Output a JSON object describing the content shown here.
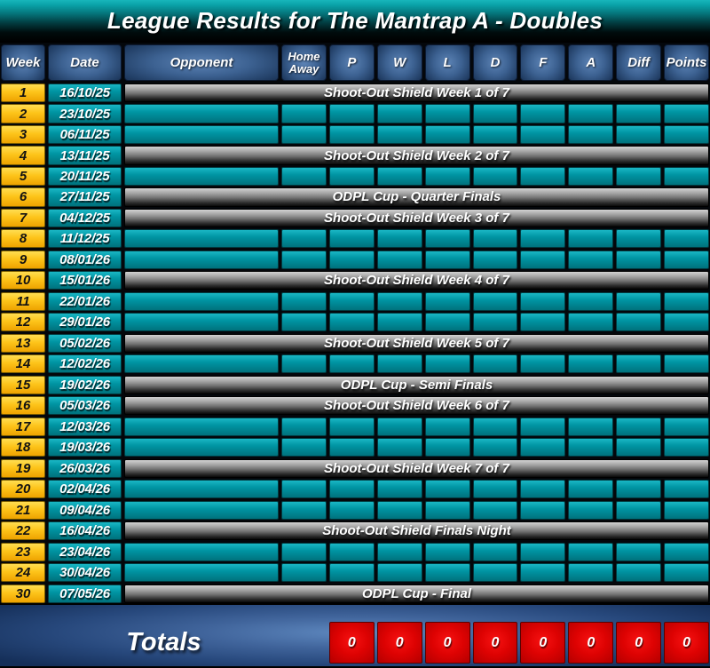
{
  "title": "League Results for The Mantrap A - Doubles",
  "header": {
    "columns": [
      {
        "key": "week",
        "label": "Week"
      },
      {
        "key": "date",
        "label": "Date"
      },
      {
        "key": "opponent",
        "label": "Opponent"
      },
      {
        "key": "home-away",
        "label": "Home\nAway"
      },
      {
        "key": "p",
        "label": "P"
      },
      {
        "key": "w",
        "label": "W"
      },
      {
        "key": "l",
        "label": "L"
      },
      {
        "key": "d",
        "label": "D"
      },
      {
        "key": "f",
        "label": "F"
      },
      {
        "key": "a",
        "label": "A"
      },
      {
        "key": "diff",
        "label": "Diff"
      },
      {
        "key": "points",
        "label": "Points"
      }
    ]
  },
  "rows": [
    {
      "week": "1",
      "date": "16/10/25",
      "event": "Shoot-Out Shield Week 1 of 7"
    },
    {
      "week": "2",
      "date": "23/10/25",
      "event": ""
    },
    {
      "week": "3",
      "date": "06/11/25",
      "event": ""
    },
    {
      "week": "4",
      "date": "13/11/25",
      "event": "Shoot-Out Shield Week 2 of 7"
    },
    {
      "week": "5",
      "date": "20/11/25",
      "event": ""
    },
    {
      "week": "6",
      "date": "27/11/25",
      "event": "ODPL Cup - Quarter Finals"
    },
    {
      "week": "7",
      "date": "04/12/25",
      "event": "Shoot-Out Shield Week 3 of 7"
    },
    {
      "week": "8",
      "date": "11/12/25",
      "event": ""
    },
    {
      "week": "9",
      "date": "08/01/26",
      "event": ""
    },
    {
      "week": "10",
      "date": "15/01/26",
      "event": "Shoot-Out Shield Week 4 of 7"
    },
    {
      "week": "11",
      "date": "22/01/26",
      "event": ""
    },
    {
      "week": "12",
      "date": "29/01/26",
      "event": ""
    },
    {
      "week": "13",
      "date": "05/02/26",
      "event": "Shoot-Out Shield Week 5 of 7"
    },
    {
      "week": "14",
      "date": "12/02/26",
      "event": ""
    },
    {
      "week": "15",
      "date": "19/02/26",
      "event": "ODPL Cup - Semi Finals"
    },
    {
      "week": "16",
      "date": "05/03/26",
      "event": "Shoot-Out Shield Week 6 of 7"
    },
    {
      "week": "17",
      "date": "12/03/26",
      "event": ""
    },
    {
      "week": "18",
      "date": "19/03/26",
      "event": ""
    },
    {
      "week": "19",
      "date": "26/03/26",
      "event": "Shoot-Out Shield Week 7 of 7"
    },
    {
      "week": "20",
      "date": "02/04/26",
      "event": ""
    },
    {
      "week": "21",
      "date": "09/04/26",
      "event": ""
    },
    {
      "week": "22",
      "date": "16/04/26",
      "event": "Shoot-Out Shield Finals Night"
    },
    {
      "week": "23",
      "date": "23/04/26",
      "event": ""
    },
    {
      "week": "24",
      "date": "30/04/26",
      "event": ""
    },
    {
      "week": "30",
      "date": "07/05/26",
      "event": "ODPL Cup - Final"
    }
  ],
  "totals": {
    "label": "Totals",
    "values": [
      "0",
      "0",
      "0",
      "0",
      "0",
      "0",
      "0",
      "0"
    ]
  },
  "colors": {
    "title_teal": "#0aa2a8",
    "row_teal": "#0095a3",
    "week_yellow": "#fdc41a",
    "header_blue": "#3c6191",
    "banner_gray": "#a4a4a4",
    "totals_navy": "#27487c",
    "total_red": "#dd0202",
    "text_white": "#ffffff"
  }
}
